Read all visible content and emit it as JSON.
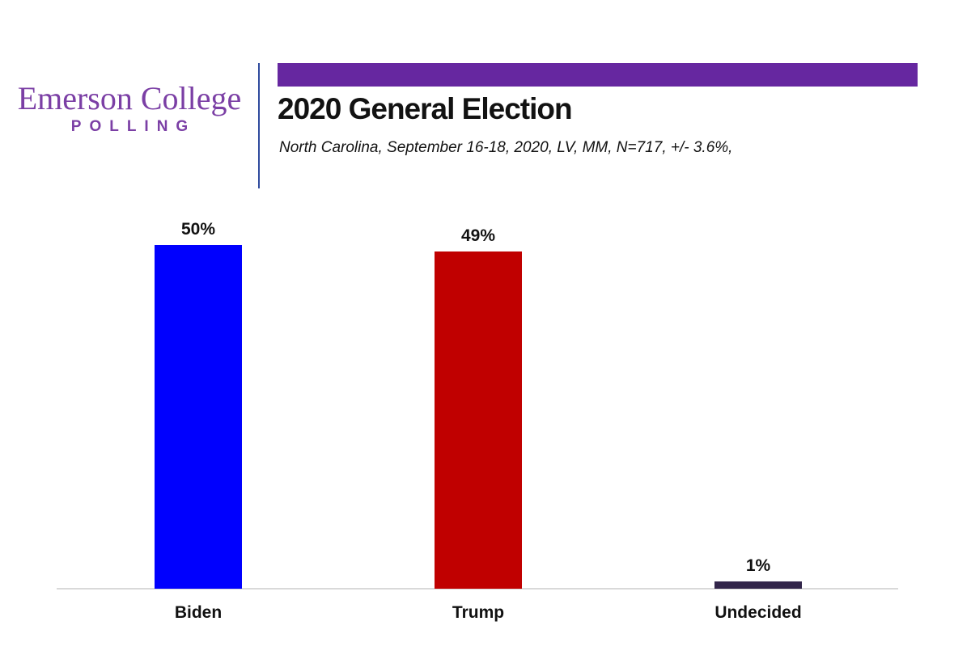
{
  "logo": {
    "name": "Emerson College",
    "sub": "POLLING",
    "color": "#7B3FA5"
  },
  "header": {
    "title": "2020 General Election",
    "subtitle": "North Carolina, September 16-18, 2020, LV, MM, N=717, +/- 3.6%,",
    "accent_bar_color": "#6627A0",
    "divider_color": "#2F4B9E"
  },
  "chart_data": {
    "type": "bar",
    "title": "2020 General Election",
    "subtitle": "North Carolina, September 16-18, 2020, LV, MM, N=717, +/- 3.6%,",
    "categories": [
      "Biden",
      "Trump",
      "Undecided"
    ],
    "values": [
      50,
      49,
      1
    ],
    "value_labels": [
      "50%",
      "49%",
      "1%"
    ],
    "bar_colors": [
      "#0000FE",
      "#C00000",
      "#32254A"
    ],
    "ylim": [
      0,
      50
    ],
    "grid": false,
    "legend": false,
    "axis_line_color": "#D9D9D9",
    "value_label_position": "above-bar",
    "category_label_position": "below-axis"
  }
}
